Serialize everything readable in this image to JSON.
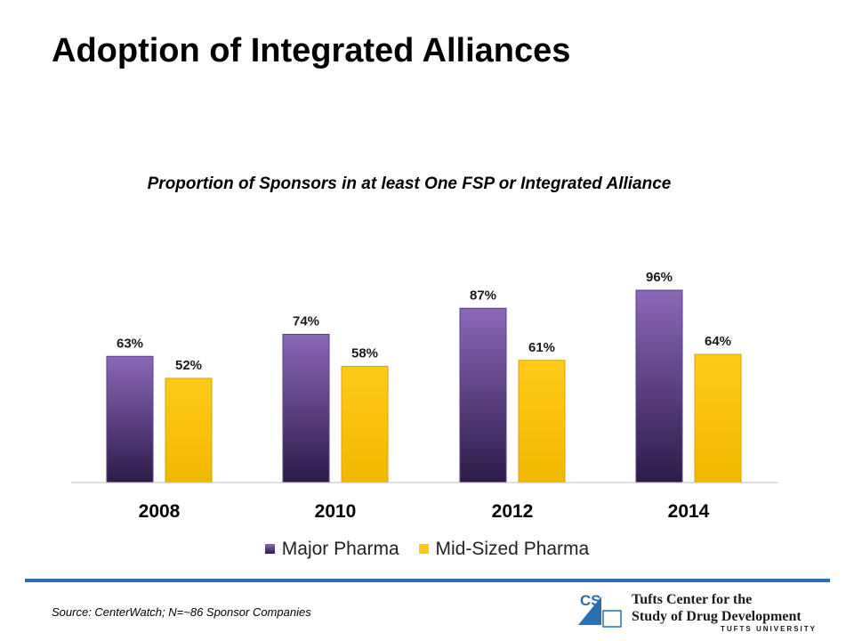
{
  "page": {
    "title": "Adoption of Integrated Alliances",
    "source": "Source:  CenterWatch; N=~86 Sponsor Companies"
  },
  "logo": {
    "mark": "CSDD",
    "line1": "Tufts Center for the",
    "line2": "Study of Drug Development",
    "university": "TUFTS UNIVERSITY"
  },
  "colors": {
    "major_top": "#8a68b8",
    "major_bottom": "#2e1a4a",
    "mid_top": "#ffca1a",
    "mid_bottom": "#f0b800",
    "rule": "#2a6fb0",
    "logo_blue": "#2a6fb0"
  },
  "chart_data": {
    "type": "bar",
    "title": "Proportion of Sponsors in at  least One FSP or Integrated Alliance",
    "categories": [
      "2008",
      "2010",
      "2012",
      "2014"
    ],
    "series": [
      {
        "name": "Major Pharma",
        "values": [
          63,
          74,
          87,
          96
        ],
        "labels": [
          "63%",
          "74%",
          "87%",
          "96%"
        ]
      },
      {
        "name": "Mid-Sized Pharma",
        "values": [
          52,
          58,
          61,
          64
        ],
        "labels": [
          "52%",
          "58%",
          "61%",
          "64%"
        ]
      }
    ],
    "ylim": [
      0,
      100
    ],
    "grid": false,
    "legend": "bottom",
    "data_labels": true
  }
}
